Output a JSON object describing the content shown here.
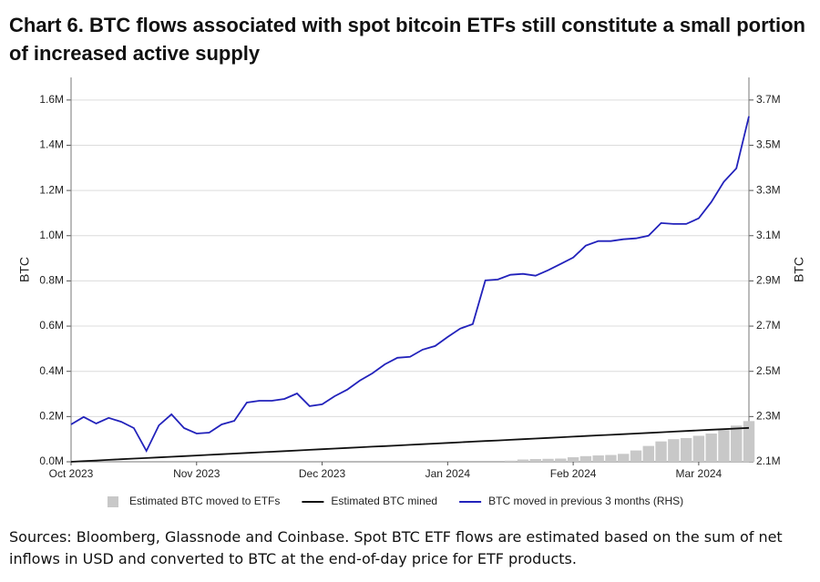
{
  "chart_data": {
    "type": "bar-line",
    "title": "Chart 6. BTC flows associated with spot bitcoin ETFs still constitute a small portion of increased active supply",
    "source": "Sources: Bloomberg, Glassnode and Coinbase. Spot BTC ETF flows are estimated based on the sum of net inflows in USD and converted to BTC at the end-of-day price for ETF products.",
    "y_label": "BTC",
    "y2_label": "BTC",
    "categories": [
      "Oct 2023",
      null,
      null,
      null,
      null,
      null,
      null,
      null,
      null,
      null,
      "Nov 2023",
      null,
      null,
      null,
      null,
      null,
      null,
      null,
      null,
      null,
      "Dec 2023",
      null,
      null,
      null,
      null,
      null,
      null,
      null,
      null,
      null,
      "Jan 2024",
      null,
      null,
      null,
      null,
      null,
      null,
      null,
      null,
      null,
      "Feb 2024",
      null,
      null,
      null,
      null,
      null,
      null,
      null,
      null,
      null,
      "Mar 2024",
      null,
      null,
      null,
      null
    ],
    "series": [
      {
        "name": "Estimated BTC moved to ETFs",
        "kind": "bar",
        "color": "#c8c8c8",
        "values": [
          0,
          0,
          0,
          0,
          0,
          0,
          0,
          0,
          0,
          0,
          0,
          0,
          0,
          0,
          0,
          0,
          0,
          0,
          0,
          0,
          0,
          0,
          0,
          0,
          0,
          0,
          0,
          0,
          0,
          0,
          0,
          0,
          0,
          0,
          0,
          5000,
          10000,
          12000,
          13000,
          14000,
          20000,
          25000,
          28000,
          30000,
          35000,
          50000,
          70000,
          90000,
          100000,
          105000,
          115000,
          125000,
          140000,
          160000,
          180000
        ]
      },
      {
        "name": "Estimated BTC mined",
        "kind": "line",
        "color": "#111111",
        "values": [
          0,
          2800,
          5600,
          8300,
          11100,
          13900,
          16700,
          19400,
          22200,
          25000,
          27800,
          30600,
          33300,
          36100,
          38900,
          41700,
          44400,
          47200,
          50000,
          52800,
          55600,
          58300,
          61100,
          63900,
          66700,
          69400,
          72200,
          75000,
          77800,
          80600,
          83300,
          86100,
          88900,
          91700,
          94400,
          97200,
          100000,
          102800,
          105600,
          108300,
          111100,
          113900,
          116700,
          119400,
          122200,
          125000,
          127800,
          130600,
          133300,
          136100,
          138900,
          141700,
          144400,
          147200,
          150000
        ]
      },
      {
        "name": "BTC moved in previous 3 months (RHS)",
        "kind": "line",
        "axis": "y2",
        "color": "#2222bb",
        "values": [
          2265000,
          2298000,
          2269000,
          2294000,
          2277000,
          2249000,
          2148000,
          2261000,
          2310000,
          2249000,
          2225000,
          2229000,
          2265000,
          2281000,
          2362000,
          2370000,
          2370000,
          2378000,
          2402000,
          2346000,
          2354000,
          2390000,
          2419000,
          2459000,
          2491000,
          2531000,
          2560000,
          2564000,
          2596000,
          2612000,
          2652000,
          2689000,
          2709000,
          2902000,
          2906000,
          2927000,
          2931000,
          2923000,
          2947000,
          2975000,
          3003000,
          3056000,
          3076000,
          3076000,
          3084000,
          3088000,
          3100000,
          3156000,
          3152000,
          3152000,
          3177000,
          3249000,
          3338000,
          3398000,
          3628000
        ]
      }
    ],
    "ylim": [
      0,
      1700000
    ],
    "yticks": [
      {
        "value": 0,
        "label": "0.0M"
      },
      {
        "value": 200000,
        "label": "0.2M"
      },
      {
        "value": 400000,
        "label": "0.4M"
      },
      {
        "value": 600000,
        "label": "0.6M"
      },
      {
        "value": 800000,
        "label": "0.8M"
      },
      {
        "value": 1000000,
        "label": "1.0M"
      },
      {
        "value": 1200000,
        "label": "1.2M"
      },
      {
        "value": 1400000,
        "label": "1.4M"
      },
      {
        "value": 1600000,
        "label": "1.6M"
      }
    ],
    "y2lim": [
      2100000,
      3800000
    ],
    "y2ticks": [
      {
        "value": 2100000,
        "label": "2.1M"
      },
      {
        "value": 2300000,
        "label": "2.3M"
      },
      {
        "value": 2500000,
        "label": "2.5M"
      },
      {
        "value": 2700000,
        "label": "2.7M"
      },
      {
        "value": 2900000,
        "label": "2.9M"
      },
      {
        "value": 3100000,
        "label": "3.1M"
      },
      {
        "value": 3300000,
        "label": "3.3M"
      },
      {
        "value": 3500000,
        "label": "3.5M"
      },
      {
        "value": 3700000,
        "label": "3.7M"
      }
    ],
    "grid": true
  }
}
